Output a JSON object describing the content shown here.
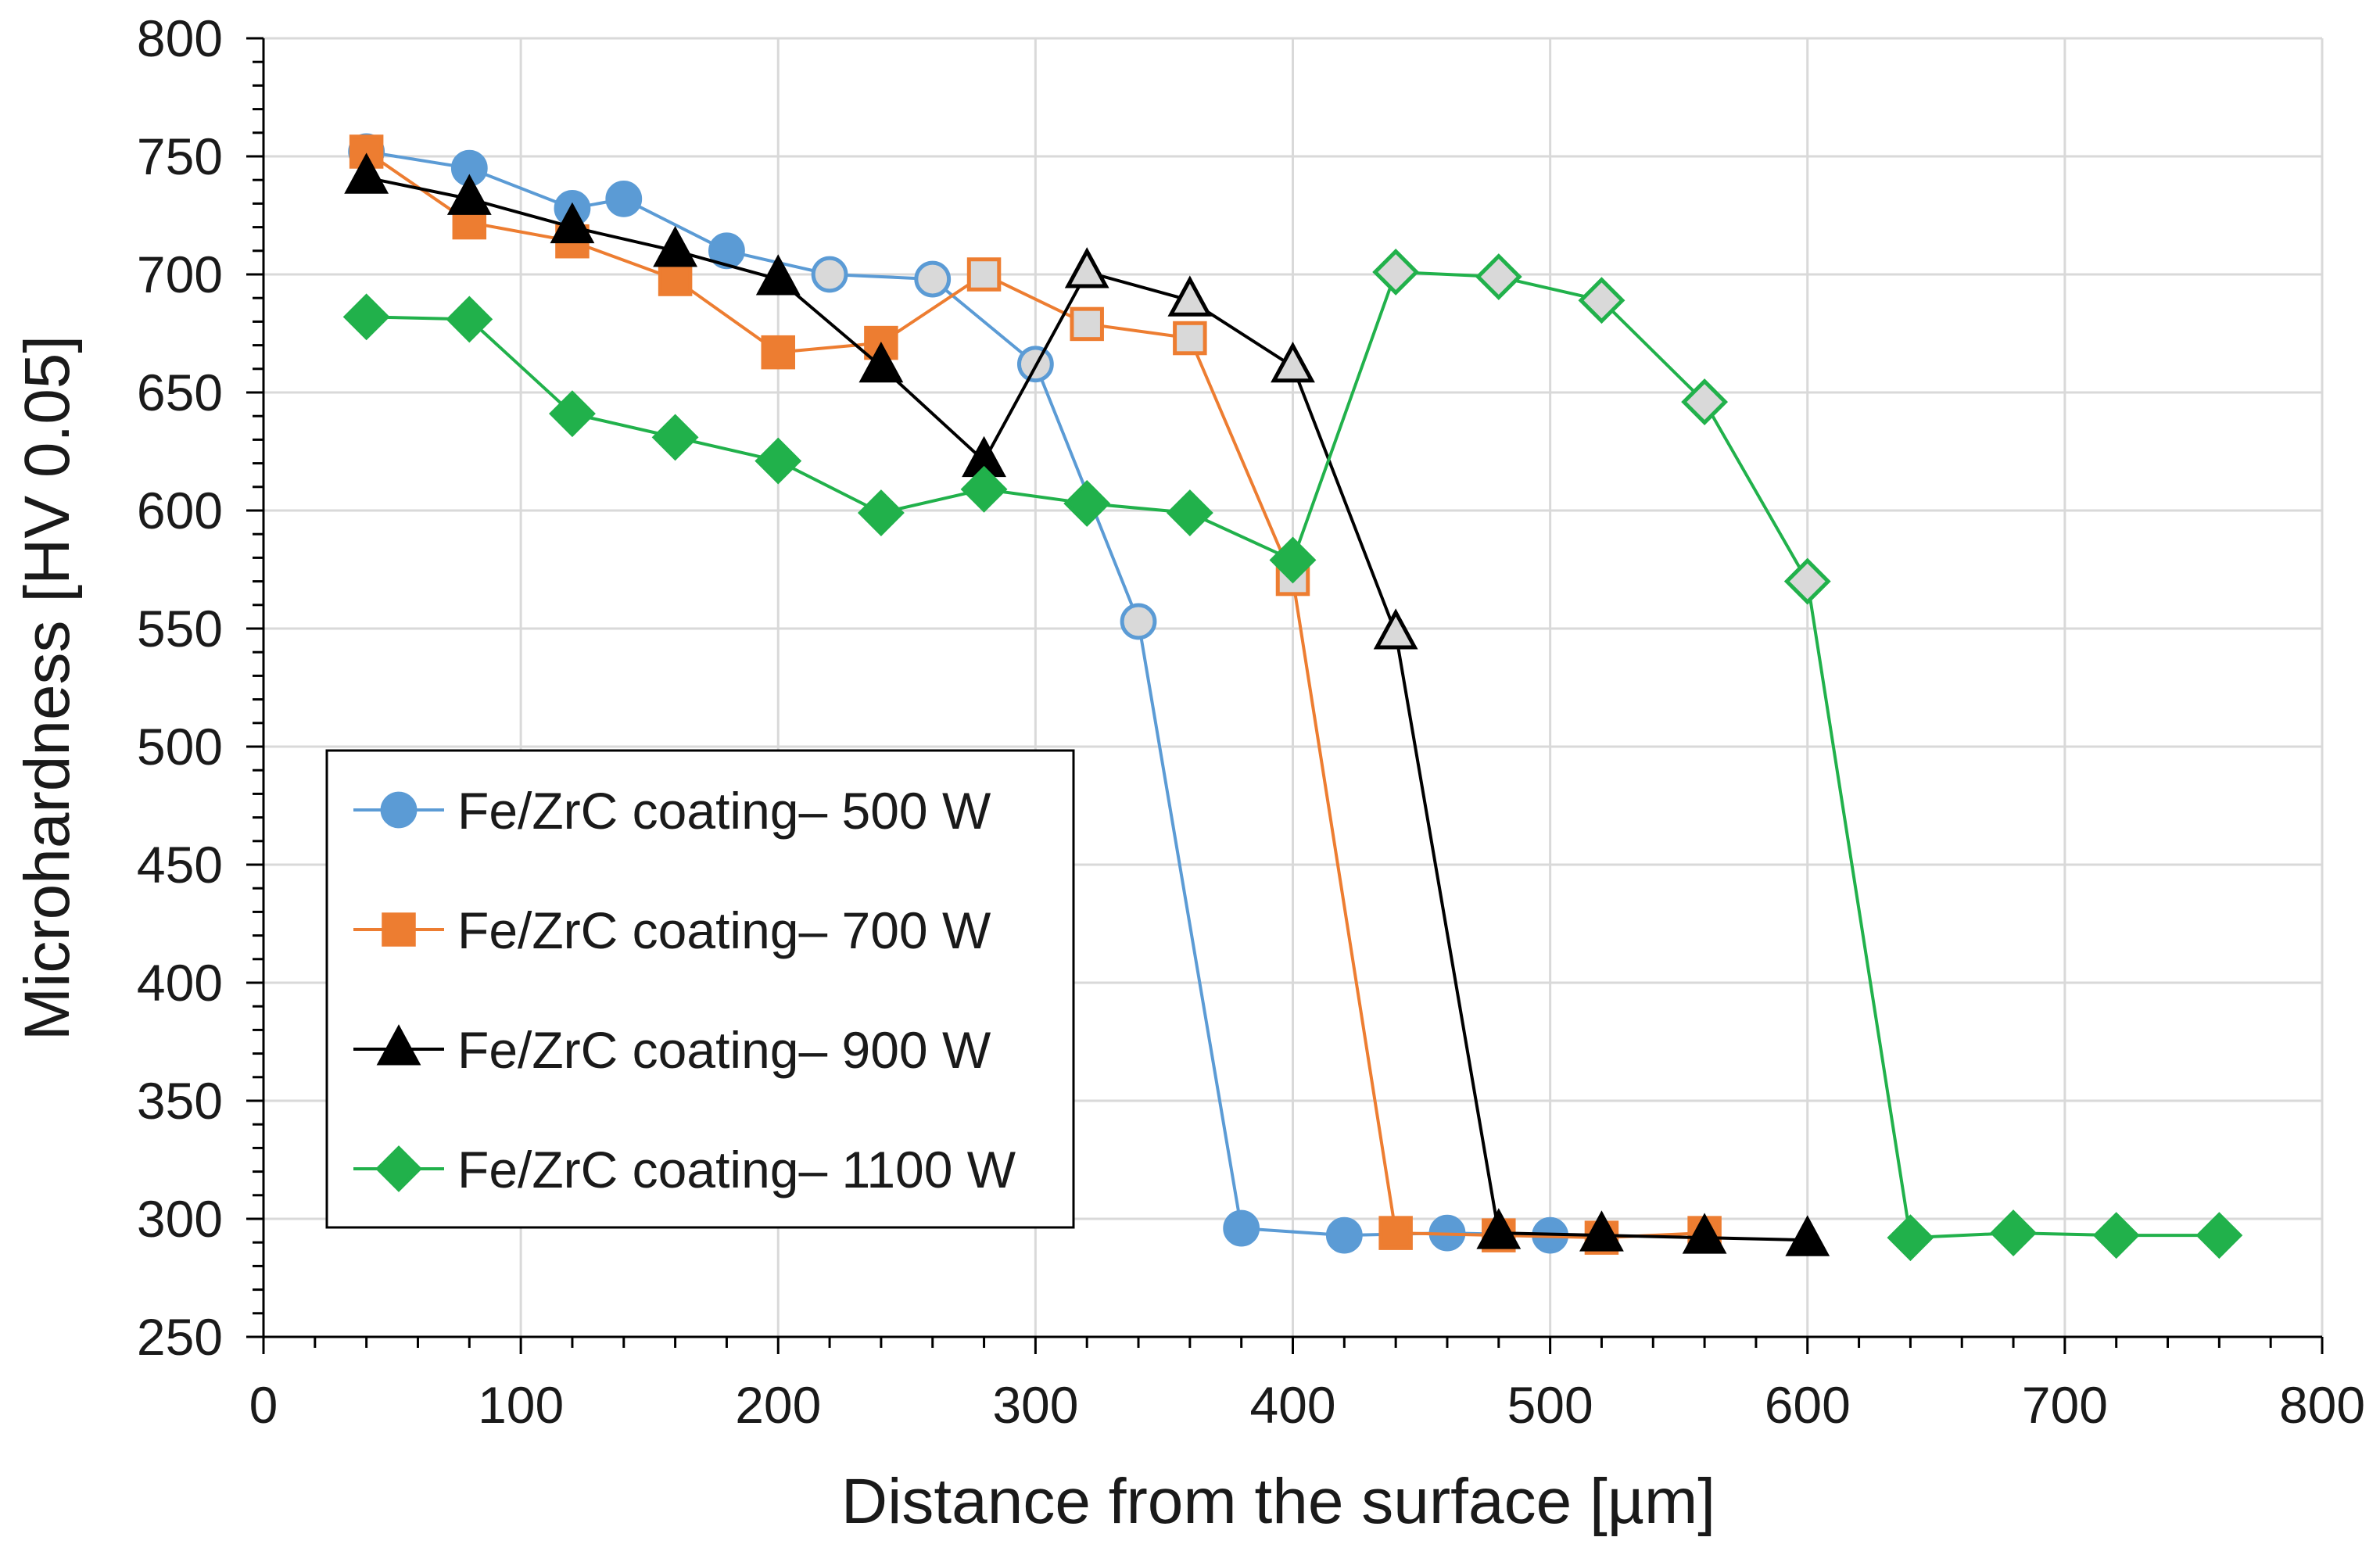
{
  "chart_data": {
    "type": "line",
    "title": "",
    "xlabel": "Distance from the surface [µm]",
    "ylabel": "Microhardness [HV 0.05]",
    "xlim": [
      0,
      800
    ],
    "ylim": [
      250,
      800
    ],
    "xticks": [
      0,
      100,
      200,
      300,
      400,
      500,
      600,
      700,
      800
    ],
    "yticks": [
      250,
      300,
      350,
      400,
      450,
      500,
      550,
      600,
      650,
      700,
      750,
      800
    ],
    "grid": true,
    "legend_position": "lower-left",
    "series": [
      {
        "name": "Fe/ZrC coating– 500 W",
        "color": "#5b9bd5",
        "marker": "circle",
        "x": [
          40,
          80,
          120,
          140,
          180,
          220,
          260,
          300,
          340,
          380,
          420,
          460,
          500
        ],
        "y": [
          752,
          745,
          728,
          732,
          710,
          700,
          698,
          662,
          553,
          296,
          293,
          294,
          293
        ],
        "hollow_from_index": 5,
        "hollow_to_index": 8
      },
      {
        "name": "Fe/ZrC coating– 700 W",
        "color": "#ed7d31",
        "marker": "square",
        "x": [
          40,
          80,
          120,
          160,
          200,
          240,
          280,
          320,
          360,
          400,
          440,
          480,
          520,
          560
        ],
        "y": [
          752,
          722,
          714,
          698,
          667,
          671,
          700,
          679,
          673,
          571,
          294,
          293,
          292,
          294
        ],
        "hollow_from_index": 6,
        "hollow_to_index": 9
      },
      {
        "name": "Fe/ZrC coating– 900 W",
        "color": "#000000",
        "marker": "triangle",
        "x": [
          40,
          80,
          120,
          160,
          200,
          240,
          280,
          320,
          360,
          400,
          440,
          480,
          520,
          560,
          600
        ],
        "y": [
          741,
          732,
          720,
          710,
          698,
          661,
          621,
          701,
          689,
          661,
          548,
          294,
          293,
          292,
          291
        ],
        "hollow_from_index": 7,
        "hollow_to_index": 10
      },
      {
        "name": "Fe/ZrC coating– 1100 W",
        "color": "#21b14b",
        "marker": "diamond",
        "x": [
          40,
          80,
          120,
          160,
          200,
          240,
          280,
          320,
          360,
          400,
          440,
          480,
          520,
          560,
          600,
          640,
          680,
          720,
          760
        ],
        "y": [
          682,
          681,
          641,
          631,
          621,
          599,
          609,
          603,
          599,
          579,
          701,
          699,
          689,
          646,
          570,
          292,
          294,
          293,
          293
        ],
        "hollow_from_index": 10,
        "hollow_to_index": 14
      }
    ]
  },
  "colors": {
    "grid": "#d9d9d9",
    "axis": "#000000",
    "hollow_fill": "#d9d9d9",
    "background": "#ffffff"
  }
}
